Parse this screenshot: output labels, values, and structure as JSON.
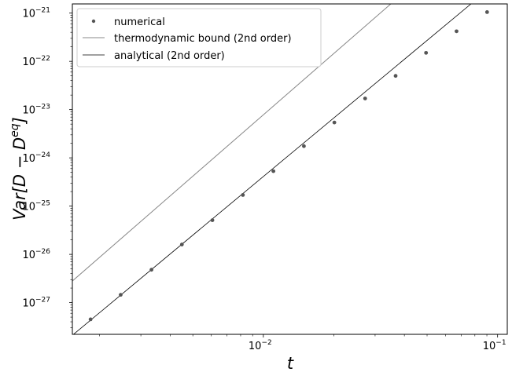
{
  "chart_data": {
    "type": "scatter",
    "title": "",
    "xlabel": "t",
    "ylabel": "Var[D − D^eq]",
    "x_scale": "log",
    "y_scale": "log",
    "xlim": [
      0.00153,
      0.11
    ],
    "ylim": [
      2.2e-28,
      1.55e-21
    ],
    "grid": false,
    "legend_position": "upper-left",
    "x_ticks": [
      {
        "value": 0.01,
        "base": "10",
        "exp": "−2"
      },
      {
        "value": 0.1,
        "base": "10",
        "exp": "−1"
      }
    ],
    "y_ticks": [
      {
        "value": 1e-27,
        "base": "10",
        "exp": "−27"
      },
      {
        "value": 1e-26,
        "base": "10",
        "exp": "−26"
      },
      {
        "value": 1e-25,
        "base": "10",
        "exp": "−25"
      },
      {
        "value": 1e-24,
        "base": "10",
        "exp": "−24"
      },
      {
        "value": 1e-23,
        "base": "10",
        "exp": "−23"
      },
      {
        "value": 1e-22,
        "base": "10",
        "exp": "−22"
      },
      {
        "value": 1e-21,
        "base": "10",
        "exp": "−21"
      }
    ],
    "series": [
      {
        "name": "numerical",
        "kind": "points",
        "color": "#555555",
        "x": [
          0.00183,
          0.00246,
          0.00333,
          0.00449,
          0.00606,
          0.00818,
          0.01104,
          0.0149,
          0.0201,
          0.0272,
          0.0367,
          0.0495,
          0.0668,
          0.0902
        ],
        "y": [
          4.5e-28,
          1.45e-27,
          4.8e-27,
          1.6e-26,
          5.1e-26,
          1.7e-25,
          5.3e-25,
          1.75e-24,
          5.4e-24,
          1.7e-23,
          5e-23,
          1.5e-22,
          4.2e-22,
          1.05e-21
        ]
      },
      {
        "name": "thermodynamic bound (2nd order)",
        "kind": "line",
        "color": "#888888",
        "x": [
          0.00153,
          0.035
        ],
        "y": [
          2.8e-27,
          1.55e-21
        ]
      },
      {
        "name": "analytical (2nd order)",
        "kind": "line",
        "color": "#000000",
        "x": [
          0.00153,
          0.077
        ],
        "y": [
          2.1e-28,
          1.55e-21
        ]
      }
    ]
  }
}
